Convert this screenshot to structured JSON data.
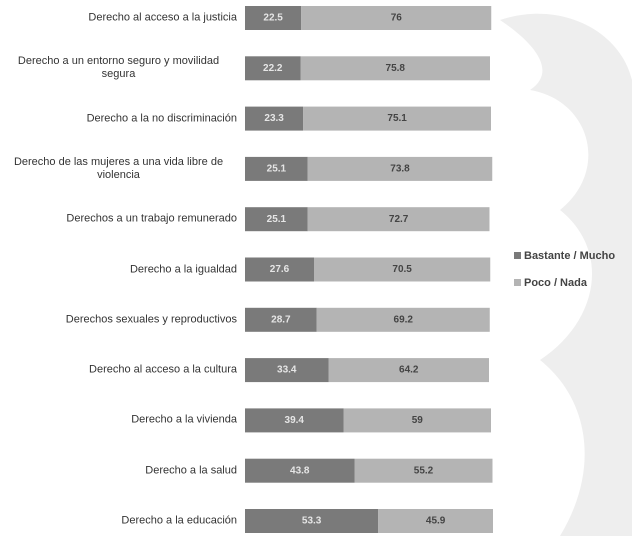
{
  "chart_data": {
    "type": "bar",
    "orientation": "horizontal",
    "stacked": true,
    "categories": [
      "Derecho al acceso a la justicia",
      "Derecho a un entorno seguro y movilidad segura",
      "Derecho a la no discriminación",
      "Derecho de las mujeres a una vida libre de violencia",
      "Derechos a un trabajo remunerado",
      "Derecho a la igualdad",
      "Derechos sexuales y reproductivos",
      "Derecho al acceso a la cultura",
      "Derecho a la vivienda",
      "Derecho a la salud",
      "Derecho a la educación"
    ],
    "series": [
      {
        "name": "Bastante / Mucho",
        "color": "#7a7a7a",
        "values": [
          22.5,
          22.2,
          23.3,
          25.1,
          25.1,
          27.6,
          28.7,
          33.4,
          39.4,
          43.8,
          53.3
        ]
      },
      {
        "name": "Poco / Nada",
        "color": "#b4b4b4",
        "values": [
          76,
          75.8,
          75.1,
          73.8,
          72.7,
          70.5,
          69.2,
          64.2,
          59,
          55.2,
          45.9
        ]
      }
    ],
    "legend": "right"
  }
}
